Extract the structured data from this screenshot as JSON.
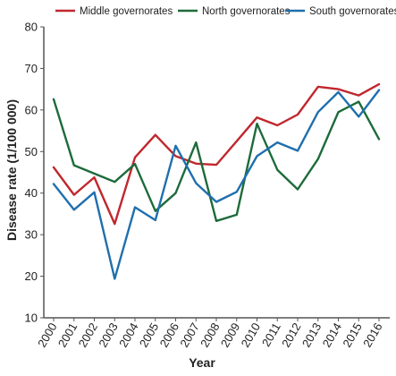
{
  "chart_data": {
    "type": "line",
    "xlabel": "Year",
    "ylabel": "Disease rate (1/100 000)",
    "ylim": [
      10,
      80
    ],
    "yticks": [
      10,
      20,
      30,
      40,
      50,
      60,
      70,
      80
    ],
    "x": [
      "2000",
      "2001",
      "2002",
      "2003",
      "2004",
      "2005",
      "2006",
      "2007",
      "2008",
      "2009",
      "2010",
      "2011",
      "2012",
      "2013",
      "2014",
      "2015",
      "2016"
    ],
    "grid": false,
    "legend_position": "top",
    "series": [
      {
        "name": "Middle governorates",
        "color": "#c0272d",
        "values": [
          46.2,
          39.6,
          43.8,
          32.6,
          48.6,
          54.0,
          48.9,
          47.1,
          46.8,
          52.5,
          58.2,
          56.3,
          58.9,
          65.6,
          65.0,
          63.5,
          66.2
        ]
      },
      {
        "name": "North governorates",
        "color": "#1d6b3a",
        "values": [
          62.6,
          46.7,
          44.7,
          42.7,
          47.0,
          35.7,
          40.0,
          52.2,
          33.3,
          34.8,
          56.7,
          45.6,
          40.9,
          48.2,
          59.5,
          62.0,
          53.0
        ]
      },
      {
        "name": "South governorates",
        "color": "#1f6fae",
        "values": [
          42.2,
          36.0,
          40.2,
          19.4,
          36.6,
          33.5,
          51.4,
          42.4,
          37.9,
          40.3,
          48.9,
          52.2,
          50.2,
          59.5,
          64.3,
          58.4,
          64.8
        ]
      }
    ]
  }
}
